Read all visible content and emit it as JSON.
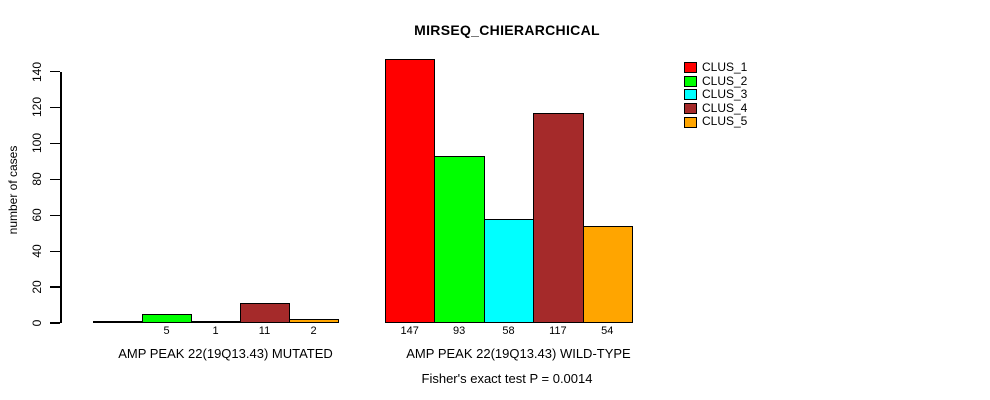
{
  "page": {
    "background": "#ffffff"
  },
  "chart_data": {
    "type": "bar",
    "title": "MIRSEQ_CHIERARCHICAL",
    "ylabel": "number of cases",
    "xlabel": "",
    "ylim": [
      0,
      140
    ],
    "yticks": [
      0,
      20,
      40,
      60,
      80,
      100,
      120,
      140
    ],
    "grid": false,
    "legend_position": "topright",
    "categories": [
      "AMP PEAK 22(19Q13.43) MUTATED",
      "AMP PEAK 22(19Q13.43) WILD-TYPE"
    ],
    "series": [
      {
        "name": "CLUS_1",
        "color": "#ff0000",
        "values": [
          0,
          147
        ]
      },
      {
        "name": "CLUS_2",
        "color": "#00ff00",
        "values": [
          5,
          93
        ]
      },
      {
        "name": "CLUS_3",
        "color": "#00ffff",
        "values": [
          1,
          58
        ]
      },
      {
        "name": "CLUS_4",
        "color": "#a52a2a",
        "values": [
          11,
          117
        ]
      },
      {
        "name": "CLUS_5",
        "color": "#ffa500",
        "values": [
          2,
          54
        ]
      }
    ],
    "count_labels": [
      [
        "",
        "5",
        "1",
        "11",
        "2"
      ],
      [
        "147",
        "93",
        "58",
        "117",
        "54"
      ]
    ],
    "annotation": "Fisher's exact test P = 0.0014"
  },
  "legend": {
    "entries": [
      {
        "label": "CLUS_1",
        "color": "#ff0000"
      },
      {
        "label": "CLUS_2",
        "color": "#00ff00"
      },
      {
        "label": "CLUS_3",
        "color": "#00ffff"
      },
      {
        "label": "CLUS_4",
        "color": "#a52a2a"
      },
      {
        "label": "CLUS_5",
        "color": "#ffa500"
      }
    ]
  }
}
